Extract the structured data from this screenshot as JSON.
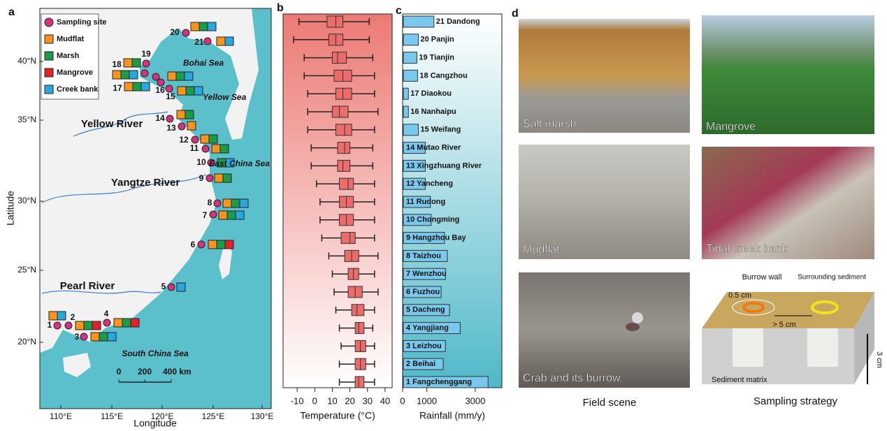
{
  "panel_labels": [
    "a",
    "b",
    "c",
    "d"
  ],
  "map": {
    "xlabel": "Longitude",
    "ylabel": "Latitude",
    "xticks": [
      "110°E",
      "115°E",
      "120°E",
      "125°E",
      "130°E"
    ],
    "yticks": [
      "40°N",
      "35°N",
      "30°N",
      "25°N",
      "20°N"
    ],
    "legend": [
      {
        "name": "Sampling site",
        "color": "#d6337f"
      },
      {
        "name": "Mudflat",
        "color": "#f7941d"
      },
      {
        "name": "Marsh",
        "color": "#1a9c4a"
      },
      {
        "name": "Mangrove",
        "color": "#e4202a"
      },
      {
        "name": "Creek bank",
        "color": "#29a8e0"
      }
    ],
    "sites": [
      "1",
      "2",
      "3",
      "4",
      "5",
      "6",
      "7",
      "8",
      "9",
      "10",
      "11",
      "12",
      "13",
      "14",
      "15",
      "16",
      "17",
      "18",
      "19",
      "20",
      "21"
    ],
    "places": [
      "Bohai Sea",
      "Yellow Sea",
      "East China Sea",
      "South China Sea",
      "Yellow River",
      "Yangtze River",
      "Pearl River"
    ],
    "scale": [
      "0",
      "200",
      "400 km"
    ]
  },
  "chart_data": [
    {
      "type": "box",
      "xlabel": "Temperature (°C)",
      "xlim": [
        -18,
        44
      ],
      "xticks": [
        -10,
        0,
        10,
        20,
        30,
        40
      ],
      "color": "#ec6b6b",
      "values": [
        [
          14,
          23,
          25,
          28,
          34
        ],
        [
          14,
          23,
          26,
          29,
          34
        ],
        [
          15,
          23,
          26,
          29,
          34
        ],
        [
          14,
          23,
          25,
          28,
          33
        ],
        [
          12,
          21,
          24,
          28,
          34
        ],
        [
          11,
          19,
          23,
          27,
          36
        ],
        [
          10,
          19,
          22,
          25,
          34
        ],
        [
          8,
          17,
          21,
          25,
          36
        ],
        [
          4,
          15,
          20,
          23,
          34
        ],
        [
          3,
          14,
          18,
          22,
          34
        ],
        [
          3,
          14,
          18,
          22,
          34
        ],
        [
          1,
          14,
          19,
          22,
          34
        ],
        [
          -2,
          13,
          16,
          20,
          33
        ],
        [
          -2,
          13,
          17,
          20,
          33
        ],
        [
          -4,
          12,
          17,
          21,
          34
        ],
        [
          -4,
          10,
          14,
          19,
          36
        ],
        [
          -4,
          12,
          16,
          21,
          34
        ],
        [
          -6,
          11,
          16,
          21,
          34
        ],
        [
          -6,
          10,
          13,
          18,
          33
        ],
        [
          -12,
          8,
          12,
          16,
          31
        ],
        [
          -9,
          7,
          12,
          16,
          31
        ]
      ]
    },
    {
      "type": "bar",
      "xlabel": "Rainfall (mm/y)",
      "xlim": [
        0,
        4100
      ],
      "xticks": [
        0,
        1000,
        3000
      ],
      "color": "#79c9ee",
      "categories": [
        "1 Fangchenggang",
        "2 Beihai",
        "3 Leizhou",
        "4 Yangjiang",
        "5 Dacheng",
        "6 Fuzhou",
        "7 Wenzhou",
        "8 Taizhou",
        "9 Hangzhou Bay",
        "10 Chongming",
        "11 Rudong",
        "12 Yancheng",
        "13 Xingzhuang River",
        "14 Mutao River",
        "15 Weifang",
        "16 Nanhaipu",
        "17 Diaokou",
        "18 Cangzhou",
        "19 Tianjin",
        "20 Panjin",
        "21 Dandong"
      ],
      "values": [
        3500,
        1650,
        1740,
        2350,
        1910,
        1560,
        1740,
        1820,
        1700,
        1150,
        1120,
        910,
        910,
        910,
        620,
        210,
        210,
        590,
        560,
        620,
        1265
      ]
    }
  ],
  "photos": {
    "captions": [
      "Salt marsh",
      "Mangrove",
      "Mudflat",
      "Tidal creek bank",
      "Crab and its burrow"
    ],
    "field_label": "Field scene",
    "strategy_label": "Sampling strategy",
    "diagram": [
      "Burrow wall",
      "Surrounding sediment",
      "0.5 cm",
      "> 5 cm",
      "Sediment matrix",
      "3 cm"
    ]
  }
}
